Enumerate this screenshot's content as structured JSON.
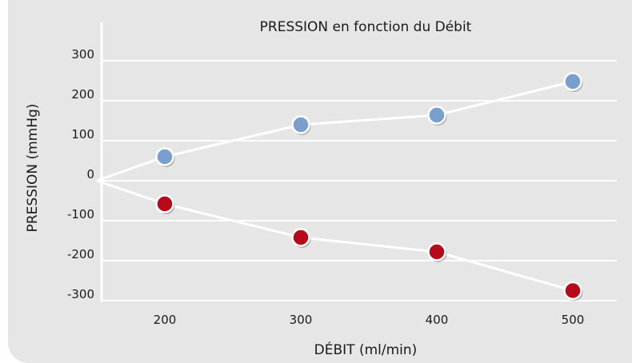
{
  "chart_data": {
    "type": "scatter",
    "title": "PRESSION en fonction du Débit",
    "xlabel": "DÉBIT (ml/min)",
    "ylabel": "PRESSION (mmHg)",
    "x_ticks": [
      "200",
      "300",
      "400",
      "500"
    ],
    "y_ticks": [
      "300",
      "200",
      "100",
      "0",
      "-100",
      "-200",
      "-300"
    ],
    "xlim": [
      150,
      625
    ],
    "ylim": [
      -310,
      310
    ],
    "grid": true,
    "legend": "none",
    "series": [
      {
        "color": "#7a9fcf",
        "points": [
          [
            200,
            60
          ],
          [
            300,
            140
          ],
          [
            400,
            164
          ],
          [
            500,
            248
          ]
        ],
        "line_from": [
          150,
          0
        ]
      },
      {
        "color": "#b5091c",
        "points": [
          [
            200,
            -58
          ],
          [
            300,
            -142
          ],
          [
            400,
            -178
          ],
          [
            500,
            -275
          ]
        ],
        "line_from": [
          150,
          0
        ]
      }
    ]
  }
}
